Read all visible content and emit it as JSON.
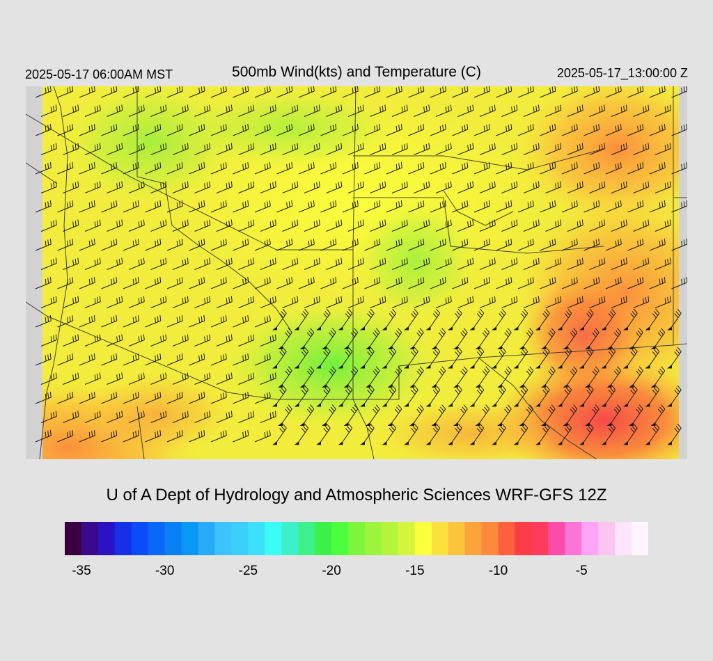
{
  "header": {
    "local_time": "2025-05-17 06:00AM MST",
    "title": "500mb Wind(kts) and Temperature (C)",
    "valid_time": "2025-05-17_13:00:00 Z"
  },
  "credit": "U of A Dept of Hydrology and Atmospheric Sciences WRF-GFS 12Z",
  "colorbar": {
    "colors": [
      "#3a0040",
      "#3a0a8c",
      "#2b12c4",
      "#1530e6",
      "#0a4cf7",
      "#0a68f7",
      "#0a80f7",
      "#0a98f7",
      "#28aaf7",
      "#3cc3fb",
      "#3ccffb",
      "#3ce0fb",
      "#3cfdf5",
      "#3cf0cb",
      "#3cf08a",
      "#3cf04a",
      "#4cff3c",
      "#7cf53c",
      "#9cf53c",
      "#b4f53c",
      "#d4f53c",
      "#fcff3c",
      "#fce03c",
      "#fcc43c",
      "#fca43c",
      "#fc8a3c",
      "#fc603c",
      "#fc3c46",
      "#fc3c5a",
      "#fc4ca8",
      "#fc74d6",
      "#fca4f6",
      "#fcc4f0",
      "#fce4fa",
      "#fdf4fd"
    ],
    "ticks": [
      {
        "label": "-35",
        "index": 1
      },
      {
        "label": "-30",
        "index": 6
      },
      {
        "label": "-25",
        "index": 11
      },
      {
        "label": "-20",
        "index": 16
      },
      {
        "label": "-15",
        "index": 21
      },
      {
        "label": "-10",
        "index": 26
      },
      {
        "label": "-5",
        "index": 31
      }
    ]
  }
}
